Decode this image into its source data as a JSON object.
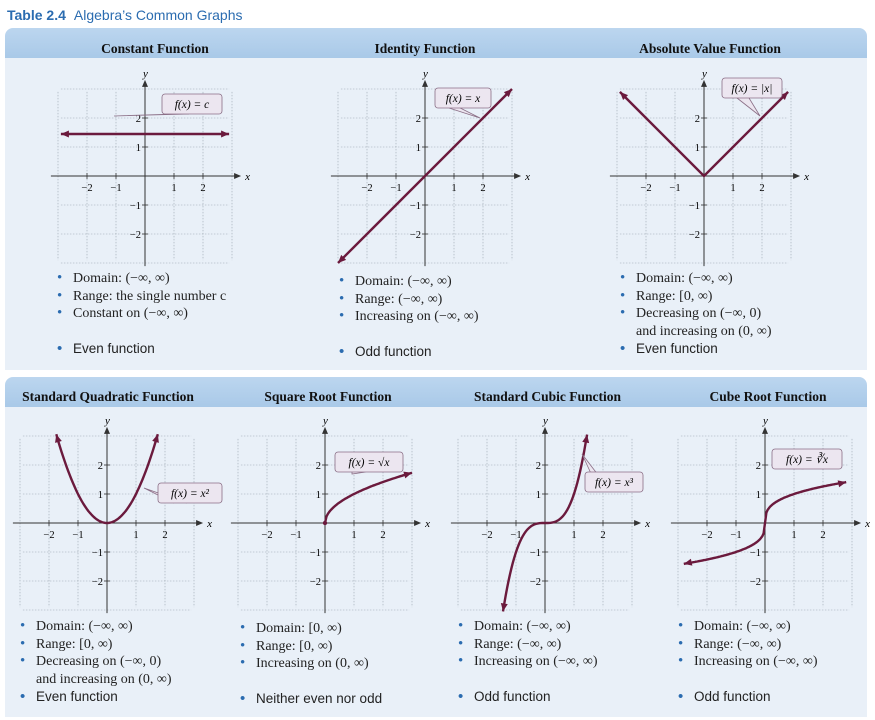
{
  "caption": {
    "number": "Table 2.4",
    "text": "Algebra’s Common Graphs"
  },
  "graphs": [
    {
      "title": "Constant Function",
      "label": "f(x) = c",
      "bullets": [
        "Domain: (−∞, ∞)",
        "Range: the single number c",
        "Constant on (−∞, ∞)",
        "Even function"
      ]
    },
    {
      "title": "Identity Function",
      "label": "f(x) = x",
      "bullets": [
        "Domain: (−∞, ∞)",
        "Range: (−∞, ∞)",
        "Increasing on (−∞, ∞)",
        "Odd function"
      ]
    },
    {
      "title": "Absolute Value Function",
      "label": "f(x) = |x|",
      "bullets": [
        "Domain: (−∞, ∞)",
        "Range: [0, ∞)",
        "Decreasing on (−∞, 0)",
        "and increasing on (0, ∞)",
        "Even function"
      ]
    },
    {
      "title": "Standard Quadratic Function",
      "label": "f(x) = x²",
      "bullets": [
        "Domain: (−∞, ∞)",
        "Range: [0, ∞)",
        "Decreasing on (−∞, 0)",
        "and increasing on (0, ∞)",
        "Even function"
      ]
    },
    {
      "title": "Square Root Function",
      "label": "f(x) = √x",
      "bullets": [
        "Domain: [0, ∞)",
        "Range: [0, ∞)",
        "Increasing on (0, ∞)",
        "Neither even nor odd"
      ]
    },
    {
      "title": "Standard Cubic Function",
      "label": "f(x) = x³",
      "bullets": [
        "Domain: (−∞, ∞)",
        "Range: (−∞, ∞)",
        "Increasing on (−∞, ∞)",
        "Odd function"
      ]
    },
    {
      "title": "Cube Root Function",
      "label": "f(x) = ∛x",
      "bullets": [
        "Domain: (−∞, ∞)",
        "Range: (−∞, ∞)",
        "Increasing on (−∞, ∞)",
        "Odd function"
      ]
    }
  ],
  "axis": {
    "x": "x",
    "y": "y",
    "ticks": [
      "−2",
      "−1",
      "1",
      "2"
    ],
    "yticks": [
      "2",
      "1",
      "−1",
      "−2"
    ]
  },
  "colors": {
    "curve": "#6b1a3d",
    "band": "#b3cfeb",
    "panel": "#e9f0f8",
    "accent": "#2b6cb0"
  }
}
